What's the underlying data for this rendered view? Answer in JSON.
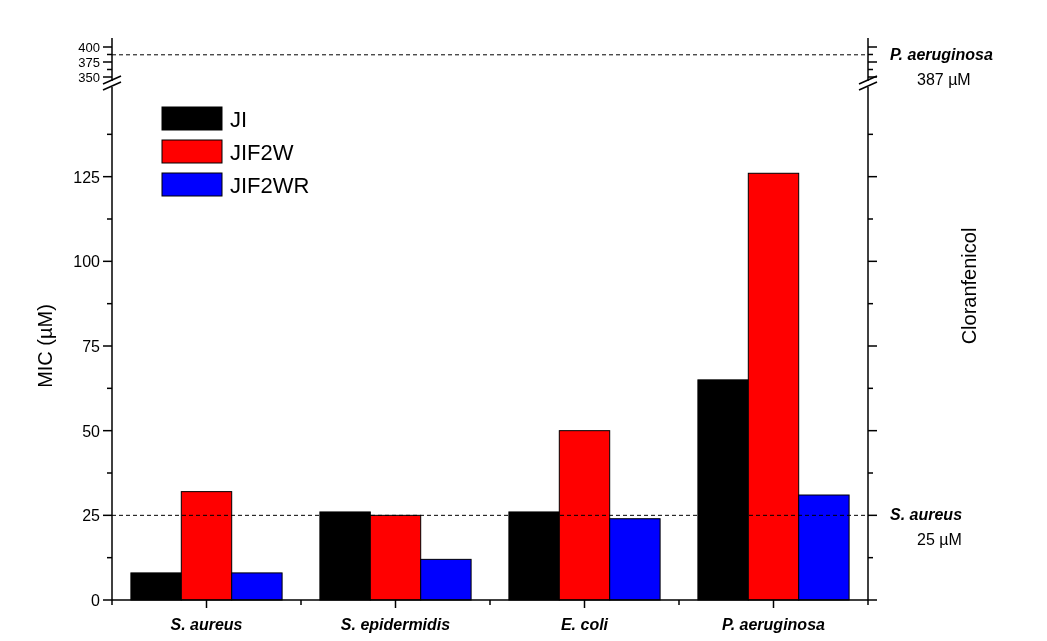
{
  "chart_data": [
    {
      "type": "bar",
      "categories": [
        null,
        null,
        null,
        null
      ],
      "ylim": [
        350,
        415
      ],
      "yticks": [
        350,
        {
          "value": 362.5,
          "label": null
        },
        375,
        {
          "value": 387.5,
          "label": null
        },
        400
      ],
      "tick_labels": "y",
      "ref_lines": [
        {
          "axis": "y",
          "value": 387,
          "label": "P. aeruginosa",
          "line_style": "dashed"
        }
      ],
      "annotations": [
        "387 µM"
      ]
    },
    {
      "type": "bar",
      "categories": [
        "S. aureus",
        "S. epidermidis",
        "E. coli",
        "P. aeruginosa"
      ],
      "series": [
        {
          "name": "JI",
          "color": "#000000",
          "values": [
            8,
            26,
            26,
            65
          ]
        },
        {
          "name": "JIF2W",
          "color": "#ff0000",
          "values": [
            32,
            25,
            50,
            126
          ]
        },
        {
          "name": "JIF2WR",
          "color": "#0000ff",
          "values": [
            8,
            12,
            24,
            31
          ]
        }
      ],
      "ylim": [
        0,
        150
      ],
      "yticks": [
        0,
        {
          "value": 12.5,
          "label": null
        },
        25,
        {
          "value": 37.5,
          "label": null
        },
        50,
        {
          "value": 62.5,
          "label": null
        },
        75,
        {
          "value": 87.5,
          "label": null
        },
        100,
        {
          "value": 112.5,
          "label": null
        },
        125,
        {
          "value": 137.5,
          "label": null
        }
      ],
      "ylabel": "MIC (µM)",
      "y2label": "Cloranfenicol",
      "legend": "top left",
      "ref_lines": [
        {
          "axis": "y",
          "value": 25,
          "label": "S. aureus",
          "line_style": "dashed"
        }
      ],
      "annotations": [
        "25 µM"
      ]
    }
  ]
}
